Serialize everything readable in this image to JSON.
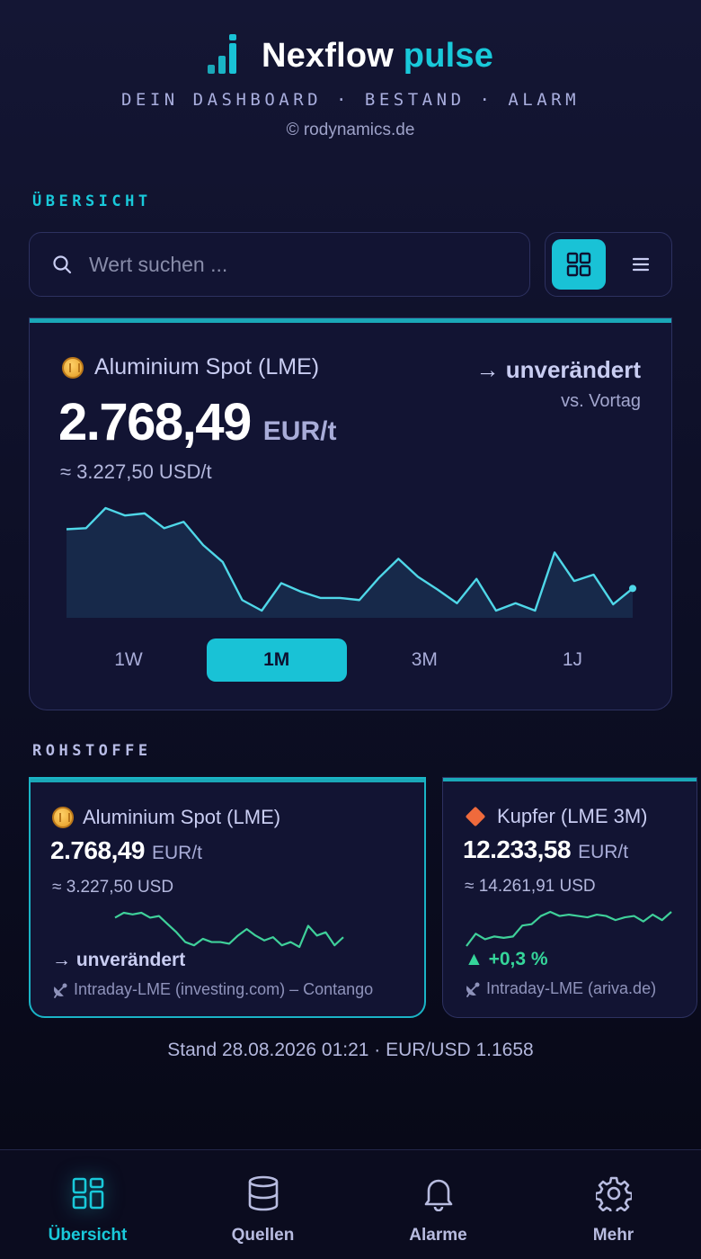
{
  "header": {
    "brand_main": "Nexflow",
    "brand_accent": "pulse",
    "tagline": "DEIN DASHBOARD · BESTAND · ALARM",
    "copyright": "© rodynamics.de"
  },
  "overview": {
    "section_title": "ÜBERSICHT",
    "search_placeholder": "Wert suchen ...",
    "view_mode": "grid"
  },
  "hero": {
    "name": "Aluminium Spot (LME)",
    "value": "2.768,49",
    "unit": "EUR/t",
    "usd": "≈ 3.227,50 USD/t",
    "change": "→ unverändert",
    "change_sub": "vs. Vortag",
    "icon": "coin-icon",
    "ranges": [
      "1W",
      "1M",
      "3M",
      "1J"
    ],
    "active_range": "1M"
  },
  "chart_data": {
    "type": "area",
    "title": "",
    "xlabel": "",
    "ylabel": "",
    "series": [
      {
        "values": [
          2805,
          2806,
          2825,
          2818,
          2820,
          2806,
          2812,
          2790,
          2774,
          2738,
          2728,
          2754,
          2746,
          2740,
          2740,
          2738,
          2759,
          2777,
          2760,
          2748,
          2735,
          2758,
          2728,
          2735,
          2728,
          2783,
          2756,
          2762,
          2734,
          2749
        ]
      }
    ],
    "grid": false,
    "legend": "none",
    "color": "#4fd7e8",
    "fill": "#17294a"
  },
  "commodities": {
    "section_title": "ROHSTOFFE",
    "cards": [
      {
        "name": "Aluminium Spot (LME)",
        "icon": "coin-icon",
        "value": "2.768,49",
        "unit": "EUR/t",
        "usd": "≈ 3.227,50 USD",
        "change": "→ unverändert",
        "source": "Intraday-LME (investing.com) – Contango",
        "spark": [
          58,
          61,
          60,
          61,
          58,
          59,
          54,
          49,
          43,
          41,
          45,
          43,
          43,
          42,
          47,
          51,
          47,
          44,
          46,
          41,
          43,
          40,
          53,
          47,
          49,
          41,
          46
        ],
        "spark_color": "#3fd09a"
      },
      {
        "name": "Kupfer (LME 3M)",
        "icon": "diamond-icon",
        "value": "12.233,58",
        "unit": "EUR/t",
        "usd": "≈ 14.261,91 USD",
        "change": "▲ +0,3 %",
        "source": "Intraday-LME (ariva.de)",
        "spark": [
          41,
          50,
          46,
          48,
          47,
          48,
          56,
          57,
          63,
          66,
          63,
          64,
          63,
          62,
          64,
          63,
          60,
          62,
          63,
          59,
          64,
          60,
          66
        ],
        "spark_color": "#3fd09a"
      }
    ]
  },
  "status": "Stand 28.08.2026 01:21 · EUR/USD 1.1658",
  "nav": {
    "items": [
      {
        "label": "Übersicht",
        "icon": "dashboard-icon",
        "active": true
      },
      {
        "label": "Quellen",
        "icon": "database-icon",
        "active": false
      },
      {
        "label": "Alarme",
        "icon": "bell-icon",
        "active": false
      },
      {
        "label": "Mehr",
        "icon": "gear-icon",
        "active": false
      }
    ]
  },
  "colors": {
    "accent": "#19c2d6",
    "positive": "#35d59a",
    "background": "#0d0f26"
  }
}
